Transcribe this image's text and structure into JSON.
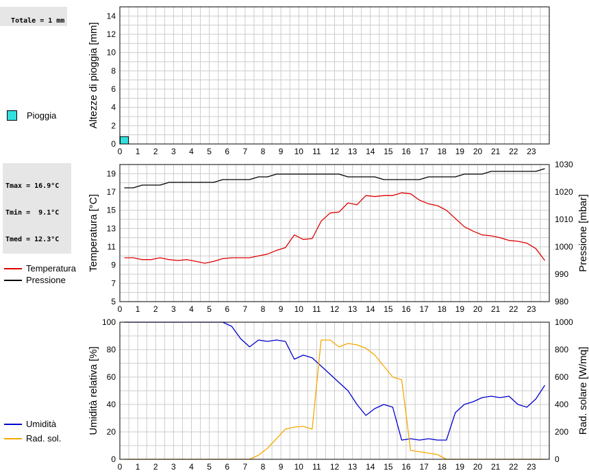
{
  "panels": {
    "rain": {
      "summary": "Totale = 1 mm",
      "legend": "Pioggia",
      "ylabel": "Altezze di pioggia [mm]"
    },
    "temp": {
      "summary": [
        "Tmax = 16.9°C",
        "Tmin =  9.1°C",
        "Tmed = 12.3°C"
      ],
      "legend": [
        "Temperatura",
        "Pressione"
      ],
      "ylabel_left": "Temperatura [°C]",
      "ylabel_right": "Pressione [mbar]"
    },
    "hum": {
      "legend": [
        "Umidità",
        "Rad. sol."
      ],
      "ylabel_left": "Umidità relativa [%]",
      "ylabel_right": "Rad. solare [W/mq]"
    }
  },
  "colors": {
    "rain": "#33e0e0",
    "temperatura": "#dd0000",
    "pressione": "#000000",
    "umidita": "#0000cc",
    "rad_sol": "#f5a800",
    "grid": "#cccccc",
    "background": "#ffffff"
  },
  "chart_data": [
    {
      "type": "bar",
      "ylabel": "Altezze di pioggia [mm]",
      "x_ticks": [
        "0",
        "1",
        "2",
        "3",
        "4",
        "5",
        "6",
        "7",
        "8",
        "9",
        "10",
        "11",
        "12",
        "13",
        "14",
        "15",
        "16",
        "17",
        "18",
        "19",
        "20",
        "21",
        "22",
        "23"
      ],
      "xlim": [
        0,
        24
      ],
      "ylim": [
        0,
        15
      ],
      "y_ticks": [
        0,
        2,
        4,
        6,
        8,
        10,
        12,
        14
      ],
      "grid": true,
      "series": [
        {
          "name": "Pioggia",
          "x": [
            0
          ],
          "values": [
            0.8
          ]
        }
      ]
    },
    {
      "type": "line",
      "ylabel": "Temperatura [°C]",
      "ylabel_right": "Pressione [mbar]",
      "x_ticks": [
        "0",
        "1",
        "2",
        "3",
        "4",
        "5",
        "6",
        "7",
        "8",
        "9",
        "10",
        "11",
        "12",
        "13",
        "14",
        "15",
        "16",
        "17",
        "18",
        "19",
        "20",
        "21",
        "22",
        "23"
      ],
      "xlim": [
        0,
        24
      ],
      "ylim": [
        5,
        20
      ],
      "y_ticks": [
        5,
        7,
        9,
        11,
        13,
        15,
        17,
        19
      ],
      "ylim_right": [
        980,
        1030
      ],
      "y_ticks_right": [
        980,
        990,
        1000,
        1010,
        1020,
        1030
      ],
      "grid": true,
      "series": [
        {
          "name": "Temperatura",
          "x": [
            0,
            0.5,
            1,
            1.5,
            2,
            2.5,
            3,
            3.5,
            4,
            4.5,
            5,
            5.5,
            6,
            6.5,
            7,
            7.5,
            8,
            8.5,
            9,
            9.5,
            10,
            10.5,
            11,
            11.5,
            12,
            12.5,
            13,
            13.5,
            14,
            14.5,
            15,
            15.5,
            16,
            16.5,
            17,
            17.5,
            18,
            18.5,
            19,
            19.5,
            20,
            20.5,
            21,
            21.5,
            22,
            22.5,
            23,
            23.5
          ],
          "values": [
            9.8,
            9.8,
            9.6,
            9.6,
            9.8,
            9.6,
            9.5,
            9.6,
            9.4,
            9.2,
            9.4,
            9.7,
            9.8,
            9.8,
            9.8,
            10.0,
            10.2,
            10.6,
            10.9,
            12.3,
            11.8,
            11.9,
            13.8,
            14.7,
            14.8,
            15.8,
            15.6,
            16.6,
            16.5,
            16.6,
            16.6,
            16.9,
            16.8,
            16.1,
            15.7,
            15.5,
            15.0,
            14.1,
            13.2,
            12.7,
            12.3,
            12.2,
            12.0,
            11.7,
            11.6,
            11.4,
            10.8,
            9.5
          ]
        },
        {
          "name": "Pressione",
          "axis": "right",
          "x": [
            0,
            0.5,
            1,
            1.5,
            2,
            2.5,
            3,
            3.5,
            4,
            4.5,
            5,
            5.5,
            6,
            6.5,
            7,
            7.5,
            8,
            8.5,
            9,
            9.5,
            10,
            10.5,
            11,
            11.5,
            12,
            12.5,
            13,
            13.5,
            14,
            14.5,
            15,
            15.5,
            16,
            16.5,
            17,
            17.5,
            18,
            18.5,
            19,
            19.5,
            20,
            20.5,
            21,
            21.5,
            22,
            22.5,
            23,
            23.5
          ],
          "values": [
            1021.5,
            1021.5,
            1022.5,
            1022.5,
            1022.5,
            1023.5,
            1023.5,
            1023.5,
            1023.5,
            1023.5,
            1023.5,
            1024.5,
            1024.5,
            1024.5,
            1024.5,
            1025.5,
            1025.5,
            1026.5,
            1026.5,
            1026.5,
            1026.5,
            1026.5,
            1026.5,
            1026.5,
            1026.5,
            1025.5,
            1025.5,
            1025.5,
            1025.5,
            1024.5,
            1024.5,
            1024.5,
            1024.5,
            1024.5,
            1025.5,
            1025.5,
            1025.5,
            1025.5,
            1026.5,
            1026.5,
            1026.5,
            1027.5,
            1027.5,
            1027.5,
            1027.5,
            1027.5,
            1027.5,
            1028.5
          ]
        }
      ]
    },
    {
      "type": "line",
      "ylabel": "Umidità relativa [%]",
      "ylabel_right": "Rad. solare [W/mq]",
      "x_ticks": [
        "0",
        "1",
        "2",
        "3",
        "4",
        "5",
        "6",
        "7",
        "8",
        "9",
        "10",
        "11",
        "12",
        "13",
        "14",
        "15",
        "16",
        "17",
        "18",
        "19",
        "20",
        "21",
        "22",
        "23"
      ],
      "xlim": [
        0,
        24
      ],
      "ylim": [
        0,
        100
      ],
      "y_ticks": [
        0,
        20,
        40,
        60,
        80,
        100
      ],
      "ylim_right": [
        0,
        1000
      ],
      "y_ticks_right": [
        0,
        200,
        400,
        600,
        800,
        1000
      ],
      "grid": true,
      "series": [
        {
          "name": "Umidità",
          "x": [
            0,
            0.5,
            1,
            1.5,
            2,
            2.5,
            3,
            3.5,
            4,
            4.5,
            5,
            5.5,
            6,
            6.5,
            7,
            7.5,
            8,
            8.5,
            9,
            9.5,
            10,
            10.5,
            11,
            11.5,
            12,
            12.5,
            13,
            13.5,
            14,
            14.5,
            15,
            15.5,
            16,
            16.5,
            17,
            17.5,
            18,
            18.5,
            19,
            19.5,
            20,
            20.5,
            21,
            21.5,
            22,
            22.5,
            23,
            23.5
          ],
          "values": [
            100,
            100,
            100,
            100,
            100,
            100,
            100,
            100,
            100,
            100,
            100,
            100,
            97,
            88,
            82,
            87,
            86,
            87,
            86,
            73,
            76,
            74,
            68,
            62,
            56,
            50,
            40,
            32,
            37,
            40,
            38,
            14,
            15,
            14,
            15,
            14,
            14,
            34,
            40,
            42,
            45,
            46,
            45,
            46,
            40,
            38,
            44,
            54
          ]
        },
        {
          "name": "Rad. sol.",
          "axis": "right",
          "x": [
            0,
            0.5,
            1,
            1.5,
            2,
            2.5,
            3,
            3.5,
            4,
            4.5,
            5,
            5.5,
            6,
            6.5,
            7,
            7.5,
            8,
            8.5,
            9,
            9.5,
            10,
            10.5,
            11,
            11.5,
            12,
            12.5,
            13,
            13.5,
            14,
            14.5,
            15,
            15.5,
            16,
            16.5,
            17,
            17.5,
            18,
            18.5,
            19,
            19.5,
            20,
            20.5,
            21,
            21.5,
            22,
            22.5,
            23,
            23.5
          ],
          "values": [
            0,
            0,
            0,
            0,
            0,
            0,
            0,
            0,
            0,
            0,
            0,
            0,
            0,
            0,
            0,
            30,
            80,
            150,
            220,
            235,
            240,
            220,
            870,
            870,
            820,
            845,
            835,
            810,
            760,
            680,
            600,
            580,
            65,
            55,
            45,
            35,
            0,
            0,
            0,
            0,
            0,
            0,
            0,
            0,
            0,
            0,
            0,
            0
          ]
        }
      ]
    }
  ]
}
